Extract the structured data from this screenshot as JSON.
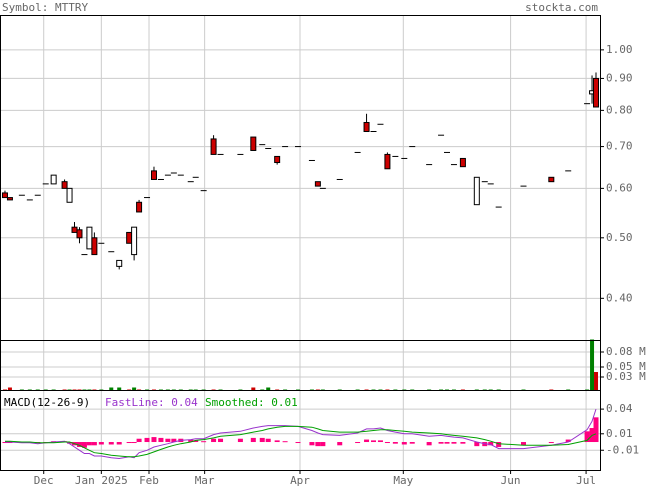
{
  "chart_data": {
    "type": "candlestick",
    "title": "Symbol: MTTRY",
    "source": "stockta.com",
    "x": [
      0.75,
      2,
      5,
      7,
      9,
      11,
      13,
      15.75,
      17,
      18.25,
      19.5,
      20.75,
      22,
      23.25,
      25,
      27.5,
      29.5,
      32,
      33.25,
      34.5,
      36.5,
      38.25,
      40,
      41.75,
      43.25,
      45,
      47.5,
      48.75,
      50.75,
      53.25,
      55,
      60,
      63.25,
      65.5,
      67,
      69.25,
      71.25,
      74.5,
      78,
      79.5,
      80.75,
      85,
      89.5,
      91.75,
      93.5,
      95.25,
      97,
      99,
      101.25,
      103.25,
      107.5,
      110.5,
      112,
      113.75,
      116,
      119.5,
      121.5,
      123,
      125,
      131.25,
      138.25,
      142.5,
      147.25,
      148.5,
      149.5
    ],
    "open": [
      0.59,
      0.58,
      0.585,
      0.575,
      0.585,
      0.61,
      0.61,
      0.615,
      0.57,
      0.52,
      0.515,
      0.47,
      0.48,
      0.5,
      0.49,
      0.475,
      0.45,
      0.51,
      0.47,
      0.57,
      0.58,
      0.64,
      0.62,
      0.63,
      0.635,
      0.63,
      0.615,
      0.625,
      0.595,
      0.72,
      0.68,
      0.68,
      0.725,
      0.705,
      0.695,
      0.675,
      0.7,
      0.7,
      0.665,
      0.615,
      0.6,
      0.62,
      0.685,
      0.765,
      0.74,
      0.76,
      0.68,
      0.675,
      0.67,
      0.7,
      0.655,
      0.73,
      0.685,
      0.655,
      0.67,
      0.565,
      0.615,
      0.61,
      0.56,
      0.605,
      0.625,
      0.64,
      0.82,
      0.85,
      0.9
    ],
    "high": [
      0.595,
      0.58,
      0.585,
      0.575,
      0.585,
      0.61,
      0.63,
      0.62,
      0.6,
      0.53,
      0.52,
      0.47,
      0.52,
      0.51,
      0.49,
      0.475,
      0.46,
      0.51,
      0.52,
      0.575,
      0.58,
      0.65,
      0.62,
      0.63,
      0.635,
      0.63,
      0.615,
      0.625,
      0.595,
      0.73,
      0.68,
      0.68,
      0.725,
      0.705,
      0.695,
      0.675,
      0.7,
      0.7,
      0.665,
      0.615,
      0.6,
      0.62,
      0.685,
      0.79,
      0.74,
      0.76,
      0.685,
      0.675,
      0.67,
      0.7,
      0.655,
      0.73,
      0.685,
      0.655,
      0.67,
      0.625,
      0.615,
      0.61,
      0.56,
      0.605,
      0.625,
      0.64,
      0.82,
      0.91,
      0.92
    ],
    "low": [
      0.58,
      0.575,
      0.585,
      0.575,
      0.585,
      0.61,
      0.61,
      0.6,
      0.57,
      0.51,
      0.49,
      0.47,
      0.48,
      0.47,
      0.49,
      0.475,
      0.445,
      0.49,
      0.46,
      0.55,
      0.58,
      0.62,
      0.62,
      0.63,
      0.635,
      0.63,
      0.615,
      0.625,
      0.595,
      0.68,
      0.68,
      0.68,
      0.69,
      0.705,
      0.695,
      0.655,
      0.7,
      0.7,
      0.665,
      0.605,
      0.6,
      0.62,
      0.685,
      0.74,
      0.74,
      0.76,
      0.645,
      0.675,
      0.67,
      0.7,
      0.655,
      0.73,
      0.685,
      0.655,
      0.65,
      0.565,
      0.615,
      0.61,
      0.56,
      0.605,
      0.615,
      0.64,
      0.82,
      0.82,
      0.81
    ],
    "close": [
      0.58,
      0.575,
      0.585,
      0.575,
      0.585,
      0.61,
      0.63,
      0.6,
      0.6,
      0.51,
      0.5,
      0.47,
      0.52,
      0.47,
      0.49,
      0.475,
      0.46,
      0.49,
      0.52,
      0.55,
      0.58,
      0.62,
      0.62,
      0.63,
      0.635,
      0.63,
      0.615,
      0.625,
      0.595,
      0.68,
      0.68,
      0.68,
      0.69,
      0.705,
      0.695,
      0.66,
      0.7,
      0.7,
      0.665,
      0.605,
      0.6,
      0.62,
      0.685,
      0.74,
      0.74,
      0.76,
      0.645,
      0.675,
      0.67,
      0.7,
      0.655,
      0.73,
      0.685,
      0.655,
      0.65,
      0.625,
      0.615,
      0.61,
      0.56,
      0.605,
      0.615,
      0.64,
      0.82,
      0.86,
      0.81
    ],
    "xlim": [
      0,
      150
    ],
    "xticks": [
      {
        "value": 10.5,
        "label": "Dec"
      },
      {
        "value": 25,
        "label": "Jan 2025"
      },
      {
        "value": 37,
        "label": "Feb"
      },
      {
        "value": 51,
        "label": "Mar"
      },
      {
        "value": 75,
        "label": "Apr"
      },
      {
        "value": 101,
        "label": "May"
      },
      {
        "value": 128,
        "label": "Jun"
      },
      {
        "value": 147,
        "label": "Jul"
      }
    ],
    "ylim": [
      0.343,
      1.133
    ],
    "yticks": [
      {
        "value": 1,
        "label": "1.00"
      },
      {
        "value": 0.9,
        "label": "0.90"
      },
      {
        "value": 0.8,
        "label": "0.80"
      },
      {
        "value": 0.7,
        "label": "0.70"
      },
      {
        "value": 0.6,
        "label": "0.60"
      },
      {
        "value": 0.5,
        "label": "0.50"
      },
      {
        "value": 0.4,
        "label": "0.40"
      }
    ],
    "log_scale": true,
    "grid": true,
    "up_color": "#ffffff",
    "down_color": "#cc0000",
    "volume": {
      "values": [
        0.005,
        0.009,
        0.005,
        0.005,
        0.005,
        0.005,
        0.005,
        0.005,
        0.005,
        0.005,
        0.005,
        0.005,
        0.005,
        0.005,
        0.005,
        0.009,
        0.009,
        0.005,
        0.009,
        0.005,
        0.005,
        0.005,
        0.005,
        0.005,
        0.005,
        0.005,
        0.005,
        0.005,
        0.005,
        0.005,
        0.005,
        0.005,
        0.009,
        0.005,
        0.009,
        0.005,
        0.005,
        0.005,
        0.005,
        0.005,
        0.005,
        0.005,
        0.005,
        0.005,
        0.005,
        0.005,
        0.005,
        0.005,
        0.005,
        0.005,
        0.005,
        0.005,
        0.005,
        0.005,
        0.005,
        0.005,
        0.005,
        0.005,
        0.005,
        0.005,
        0.005,
        0.005,
        0.005,
        0.105,
        0.04
      ],
      "ylim": [
        0.004,
        0.102
      ],
      "yticks": [
        {
          "value": 0.08,
          "label": "0.08 M"
        },
        {
          "value": 0.05,
          "label": "0.05 M"
        },
        {
          "value": 0.03,
          "label": "0.03 M"
        }
      ],
      "up_color": "#008000",
      "down_color": "#cc0000"
    },
    "macd": {
      "label": "MACD(12-26-9)",
      "series": [
        {
          "name": "FastLine: 0.04",
          "color": "#9933cc",
          "values": [
            0,
            0,
            -0.001,
            -0.001,
            -0.002,
            -0.001,
            0,
            0.001,
            -0.002,
            -0.006,
            -0.01,
            -0.014,
            -0.014,
            -0.017,
            -0.017,
            -0.019,
            -0.02,
            -0.018,
            -0.019,
            -0.013,
            -0.01,
            -0.006,
            -0.004,
            -0.002,
            0,
            0.002,
            0.003,
            0.004,
            0.004,
            0.009,
            0.011,
            0.013,
            0.017,
            0.019,
            0.02,
            0.02,
            0.02,
            0.019,
            0.014,
            0.011,
            0.009,
            0.008,
            0.011,
            0.016,
            0.016,
            0.017,
            0.014,
            0.012,
            0.01,
            0.01,
            0.007,
            0.008,
            0.007,
            0.006,
            0.005,
            0,
            -0.002,
            -0.003,
            -0.008,
            -0.008,
            -0.004,
            0,
            0.015,
            0.025,
            0.04
          ]
        },
        {
          "name": "Smoothed: 0.01",
          "color": "#00a000",
          "values": [
            0.001,
            0.001,
            0,
            0,
            -0.001,
            -0.001,
            -0.001,
            0,
            0,
            -0.002,
            -0.004,
            -0.007,
            -0.01,
            -0.013,
            -0.014,
            -0.016,
            -0.017,
            -0.018,
            -0.018,
            -0.017,
            -0.015,
            -0.012,
            -0.009,
            -0.006,
            -0.004,
            -0.002,
            0,
            0.002,
            0.003,
            0.005,
            0.007,
            0.009,
            0.012,
            0.014,
            0.016,
            0.018,
            0.019,
            0.019,
            0.018,
            0.016,
            0.014,
            0.012,
            0.012,
            0.013,
            0.014,
            0.015,
            0.015,
            0.014,
            0.013,
            0.012,
            0.011,
            0.01,
            0.009,
            0.008,
            0.007,
            0.005,
            0.003,
            0.001,
            -0.002,
            -0.004,
            -0.004,
            -0.003,
            0.002,
            0.008,
            0.01
          ]
        }
      ],
      "histogram": {
        "color": "#ff0080",
        "values": [
          -0.001,
          -0.001,
          -0.001,
          -0.001,
          -0.001,
          0,
          0.001,
          0.001,
          -0.002,
          -0.004,
          -0.006,
          -0.007,
          -0.004,
          -0.004,
          -0.003,
          -0.003,
          -0.003,
          0,
          -0.001,
          0.004,
          0.005,
          0.006,
          0.005,
          0.004,
          0.004,
          0.004,
          0.003,
          0.002,
          0.001,
          0.004,
          0.004,
          0.004,
          0.005,
          0.005,
          0.004,
          0.002,
          0.001,
          0,
          -0.004,
          -0.005,
          -0.005,
          -0.004,
          -0.001,
          0.003,
          0.002,
          0.002,
          -0.001,
          -0.002,
          -0.003,
          -0.002,
          -0.004,
          -0.002,
          -0.002,
          -0.002,
          -0.002,
          -0.005,
          -0.005,
          -0.004,
          -0.006,
          -0.004,
          0,
          0.003,
          0.013,
          0.017,
          0.03
        ]
      },
      "ylim": [
        -0.034,
        0.062
      ],
      "yticks": [
        0.04,
        0.01,
        -0.01
      ]
    }
  }
}
